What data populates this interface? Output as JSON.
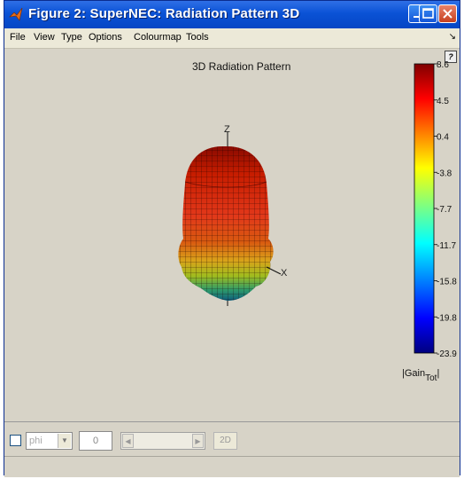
{
  "window": {
    "title": "Figure 2: SuperNEC: Radiation Pattern 3D"
  },
  "menu": {
    "items": [
      "File",
      "View",
      "Type",
      "Options",
      "Colourmap",
      "Tools"
    ]
  },
  "plot": {
    "title": "3D Radiation Pattern",
    "axis_z_label": "Z",
    "axis_x_label": "X"
  },
  "colorbar": {
    "ticks": [
      "8.6",
      "4.5",
      "0.4",
      "-3.8",
      "-7.7",
      "-11.7",
      "-15.8",
      "-19.8",
      "-23.9"
    ],
    "label_main": "|Gain",
    "label_sub": "Tot",
    "label_end": "|"
  },
  "controls": {
    "angle_select": "phi",
    "angle_value": "0",
    "button_2d": "2D"
  }
}
